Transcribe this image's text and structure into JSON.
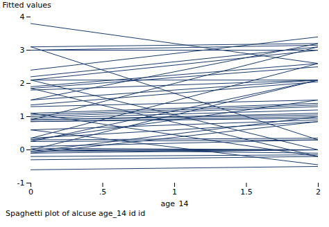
{
  "chart_data": {
    "type": "line",
    "xlabel": "age_14",
    "ylabel": "Fitted values",
    "caption": "Spaghetti plot of alcuse age_14 id id",
    "x": [
      0,
      2
    ],
    "xlim": [
      0,
      2
    ],
    "ylim": [
      -1,
      4
    ],
    "xticks": [
      0,
      {
        "value": 0.5,
        "label": ".5"
      },
      1,
      1.5,
      2
    ],
    "yticks": [
      -1,
      0,
      1,
      2,
      3,
      4
    ],
    "color": "#1B3A6B",
    "grid": false,
    "series": [
      {
        "values": [
          3.8,
          2.6
        ]
      },
      {
        "values": [
          3.1,
          3.2
        ]
      },
      {
        "values": [
          3.0,
          3.15
        ]
      },
      {
        "values": [
          3.0,
          3.0
        ]
      },
      {
        "values": [
          2.4,
          3.4
        ]
      },
      {
        "values": [
          2.2,
          3.1
        ]
      },
      {
        "values": [
          2.1,
          3.0
        ]
      },
      {
        "values": [
          2.1,
          2.1
        ]
      },
      {
        "values": [
          1.9,
          2.6
        ]
      },
      {
        "values": [
          1.85,
          2.5
        ]
      },
      {
        "values": [
          1.8,
          2.1
        ]
      },
      {
        "values": [
          1.5,
          2.1
        ]
      },
      {
        "values": [
          1.35,
          2.05
        ]
      },
      {
        "values": [
          1.3,
          1.5
        ]
      },
      {
        "values": [
          1.1,
          1.4
        ]
      },
      {
        "values": [
          1.05,
          1.35
        ]
      },
      {
        "values": [
          1.0,
          1.3
        ]
      },
      {
        "values": [
          0.95,
          1.2
        ]
      },
      {
        "values": [
          0.9,
          1.1
        ]
      },
      {
        "values": [
          0.9,
          1.05
        ]
      },
      {
        "values": [
          0.85,
          1.0
        ]
      },
      {
        "values": [
          0.85,
          0.95
        ]
      },
      {
        "values": [
          0.6,
          0.9
        ]
      },
      {
        "values": [
          0.35,
          0.85
        ]
      },
      {
        "values": [
          0.3,
          0.35
        ]
      },
      {
        "values": [
          0.25,
          0.3
        ]
      },
      {
        "values": [
          0.1,
          0.3
        ]
      },
      {
        "values": [
          0.05,
          0.0
        ]
      },
      {
        "values": [
          0.0,
          0.0
        ]
      },
      {
        "values": [
          0.0,
          -0.1
        ]
      },
      {
        "values": [
          -0.05,
          0.0
        ]
      },
      {
        "values": [
          -0.1,
          0.0
        ]
      },
      {
        "values": [
          -0.2,
          -0.15
        ]
      },
      {
        "values": [
          -0.3,
          -0.2
        ]
      },
      {
        "values": [
          -0.6,
          -0.5
        ]
      },
      {
        "values": [
          3.1,
          0.3
        ]
      },
      {
        "values": [
          2.1,
          0.0
        ]
      },
      {
        "values": [
          1.85,
          -0.2
        ]
      },
      {
        "values": [
          1.5,
          3.2
        ]
      },
      {
        "values": [
          0.9,
          3.1
        ]
      },
      {
        "values": [
          0.35,
          2.6
        ]
      },
      {
        "values": [
          0.0,
          2.1
        ]
      },
      {
        "values": [
          -0.05,
          1.0
        ]
      },
      {
        "values": [
          -0.1,
          0.85
        ]
      },
      {
        "values": [
          1.1,
          -0.2
        ]
      },
      {
        "values": [
          0.6,
          -0.45
        ]
      },
      {
        "values": [
          0.3,
          1.5
        ]
      },
      {
        "values": [
          0.25,
          2.1
        ]
      }
    ]
  }
}
